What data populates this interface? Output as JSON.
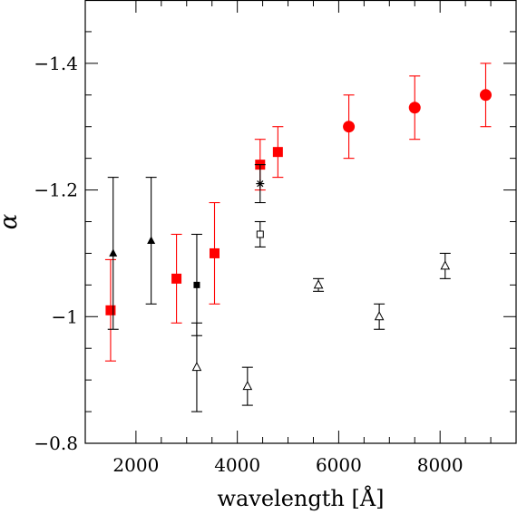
{
  "chart_data": {
    "type": "scatter",
    "xlabel": "wavelength [Å]",
    "ylabel": "α",
    "xlim": [
      1000,
      9500
    ],
    "ylim": [
      -0.8,
      -1.5
    ],
    "y_axis_inverted": true,
    "x_ticks": [
      2000,
      4000,
      6000,
      8000
    ],
    "x_tick_labels": [
      "2000",
      "4000",
      "6000",
      "8000"
    ],
    "y_ticks": [
      -0.8,
      -1.0,
      -1.2,
      -1.4
    ],
    "y_tick_labels": [
      "−0.8",
      "−1",
      "−1.2",
      "−1.4"
    ],
    "grid": false,
    "legend": "none",
    "series": [
      {
        "marker": "filled-square",
        "color": "#ff0000",
        "points": [
          {
            "x": 1500,
            "y": -1.01,
            "ylow": -0.93,
            "yhigh": -1.09
          },
          {
            "x": 2800,
            "y": -1.06,
            "ylow": -0.99,
            "yhigh": -1.13
          },
          {
            "x": 3550,
            "y": -1.1,
            "ylow": -1.02,
            "yhigh": -1.18
          },
          {
            "x": 4450,
            "y": -1.24,
            "ylow": -1.2,
            "yhigh": -1.28
          },
          {
            "x": 4800,
            "y": -1.26,
            "ylow": -1.22,
            "yhigh": -1.3
          }
        ]
      },
      {
        "marker": "filled-circle",
        "color": "#ff0000",
        "points": [
          {
            "x": 6200,
            "y": -1.3,
            "ylow": -1.25,
            "yhigh": -1.35
          },
          {
            "x": 7500,
            "y": -1.33,
            "ylow": -1.28,
            "yhigh": -1.38
          },
          {
            "x": 8900,
            "y": -1.35,
            "ylow": -1.3,
            "yhigh": -1.4
          }
        ]
      },
      {
        "marker": "filled-triangle",
        "color": "#000000",
        "points": [
          {
            "x": 1550,
            "y": -1.1,
            "ylow": -0.98,
            "yhigh": -1.22
          },
          {
            "x": 2300,
            "y": -1.12,
            "ylow": -1.02,
            "yhigh": -1.22
          }
        ]
      },
      {
        "marker": "filled-square-small",
        "color": "#000000",
        "points": [
          {
            "x": 3200,
            "y": -1.05,
            "ylow": -0.97,
            "yhigh": -1.13
          }
        ]
      },
      {
        "marker": "open-triangle",
        "color": "#000000",
        "points": [
          {
            "x": 3200,
            "y": -0.92,
            "ylow": -0.85,
            "yhigh": -0.99
          },
          {
            "x": 4200,
            "y": -0.89,
            "ylow": -0.86,
            "yhigh": -0.92
          },
          {
            "x": 5600,
            "y": -1.05,
            "ylow": -1.04,
            "yhigh": -1.06
          },
          {
            "x": 6800,
            "y": -1.0,
            "ylow": -0.98,
            "yhigh": -1.02
          },
          {
            "x": 8100,
            "y": -1.08,
            "ylow": -1.06,
            "yhigh": -1.1
          }
        ]
      },
      {
        "marker": "asterisk",
        "color": "#000000",
        "points": [
          {
            "x": 4450,
            "y": -1.21,
            "ylow": -1.18,
            "yhigh": -1.24
          }
        ]
      },
      {
        "marker": "open-square",
        "color": "#000000",
        "points": [
          {
            "x": 4450,
            "y": -1.13,
            "ylow": -1.11,
            "yhigh": -1.15
          }
        ]
      }
    ]
  }
}
